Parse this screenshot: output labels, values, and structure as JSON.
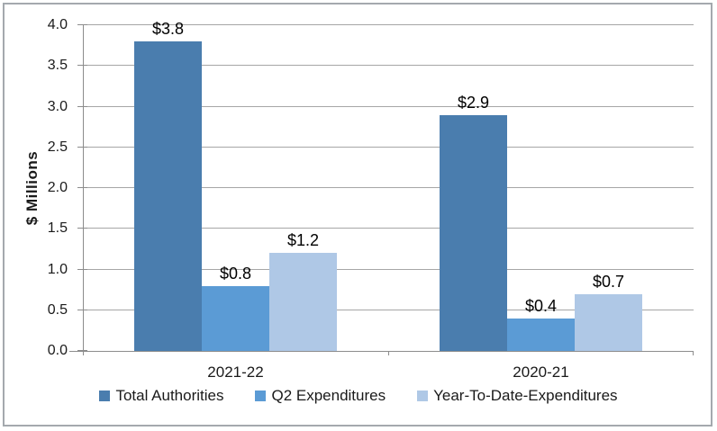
{
  "chart_data": {
    "type": "bar",
    "title": "",
    "xlabel": "",
    "ylabel": "$ Millions",
    "categories": [
      "2021-22",
      "2020-21"
    ],
    "series": [
      {
        "name": "Total Authorities",
        "color": "#4a7dae",
        "values": [
          3.8,
          2.9
        ],
        "data_labels": [
          "$3.8",
          "$2.9"
        ]
      },
      {
        "name": "Q2 Expenditures",
        "color": "#5b9bd5",
        "values": [
          0.8,
          0.4
        ],
        "data_labels": [
          "$0.8",
          "$0.4"
        ]
      },
      {
        "name": "Year-To-Date-Expenditures",
        "color": "#afc8e6",
        "values": [
          1.2,
          0.7
        ],
        "data_labels": [
          "$1.2",
          "$0.7"
        ]
      }
    ],
    "ylim": [
      0.0,
      4.0
    ],
    "ytick_step": 0.5,
    "ytick_labels": [
      "0.0",
      "0.5",
      "1.0",
      "1.5",
      "2.0",
      "2.5",
      "3.0",
      "3.5",
      "4.0"
    ],
    "grid": true,
    "legend_position": "bottom",
    "colors": {
      "gridline": "#a6a6a6",
      "axis": "#8c8c8c",
      "frame_border": "#a4a9ae",
      "text": "#1a1a1a",
      "background": "#ffffff"
    }
  }
}
